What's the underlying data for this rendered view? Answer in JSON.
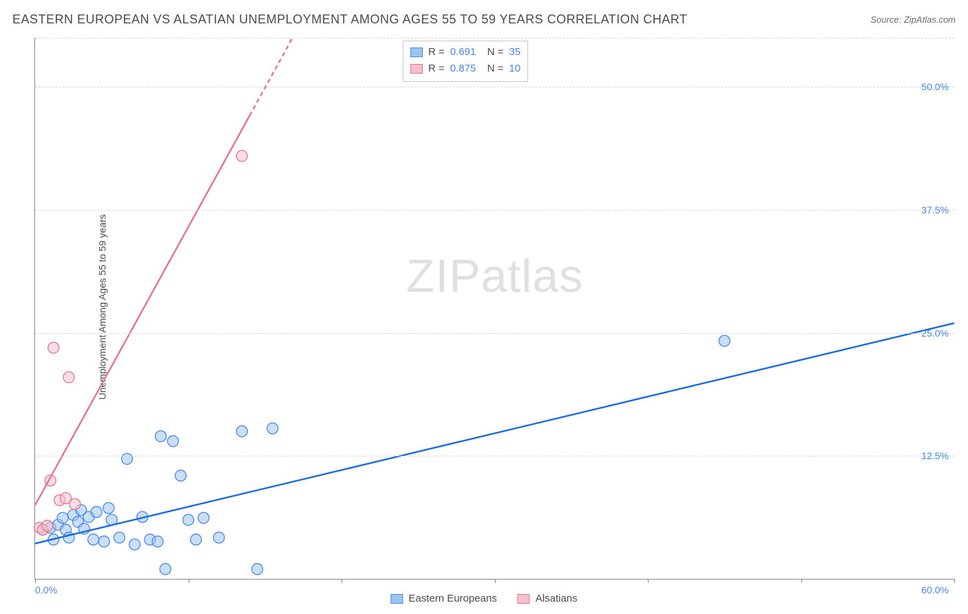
{
  "title": "EASTERN EUROPEAN VS ALSATIAN UNEMPLOYMENT AMONG AGES 55 TO 59 YEARS CORRELATION CHART",
  "source": "Source: ZipAtlas.com",
  "y_axis_label": "Unemployment Among Ages 55 to 59 years",
  "watermark": "ZIPatlas",
  "chart": {
    "type": "scatter-correlation",
    "background_color": "#ffffff",
    "grid_color": "#d8d8d8",
    "axis_color": "#888888",
    "text_color": "#4a4a4a",
    "value_color": "#4a86e8",
    "xlim": [
      0,
      60
    ],
    "ylim": [
      0,
      55
    ],
    "x_ticks": [
      0,
      10,
      20,
      30,
      40,
      50,
      60
    ],
    "x_tick_labels": {
      "0": "0.0%",
      "60": "60.0%"
    },
    "y_ticks": [
      12.5,
      25.0,
      37.5,
      50.0
    ],
    "y_tick_labels": [
      "12.5%",
      "25.0%",
      "37.5%",
      "50.0%"
    ],
    "marker_radius": 8,
    "marker_stroke_width": 1.3,
    "line_width": 2.4,
    "series": [
      {
        "name": "Eastern Europeans",
        "fill": "#9dc3f1",
        "stroke": "#4a86e8",
        "line_color": "#1a6ae0",
        "line_dashed_after_x": null,
        "r": "0.691",
        "n": "35",
        "reg_line": {
          "x1": 0,
          "y1": 3.6,
          "x2": 60,
          "y2": 26.0
        },
        "points": [
          {
            "x": 0.5,
            "y": 5.0
          },
          {
            "x": 1.0,
            "y": 5.2
          },
          {
            "x": 1.2,
            "y": 4.0
          },
          {
            "x": 1.5,
            "y": 5.5
          },
          {
            "x": 1.8,
            "y": 6.2
          },
          {
            "x": 2.0,
            "y": 5.0
          },
          {
            "x": 2.2,
            "y": 4.2
          },
          {
            "x": 2.5,
            "y": 6.5
          },
          {
            "x": 2.8,
            "y": 5.8
          },
          {
            "x": 3.0,
            "y": 7.0
          },
          {
            "x": 3.2,
            "y": 5.1
          },
          {
            "x": 3.5,
            "y": 6.3
          },
          {
            "x": 3.8,
            "y": 4.0
          },
          {
            "x": 4.0,
            "y": 6.8
          },
          {
            "x": 4.5,
            "y": 3.8
          },
          {
            "x": 5.0,
            "y": 6.0
          },
          {
            "x": 5.5,
            "y": 4.2
          },
          {
            "x": 6.0,
            "y": 12.2
          },
          {
            "x": 6.5,
            "y": 3.5
          },
          {
            "x": 7.0,
            "y": 6.3
          },
          {
            "x": 7.5,
            "y": 4.0
          },
          {
            "x": 8.0,
            "y": 3.8
          },
          {
            "x": 8.2,
            "y": 14.5
          },
          {
            "x": 8.5,
            "y": 1.0
          },
          {
            "x": 9.0,
            "y": 14.0
          },
          {
            "x": 9.5,
            "y": 10.5
          },
          {
            "x": 10.0,
            "y": 6.0
          },
          {
            "x": 10.5,
            "y": 4.0
          },
          {
            "x": 11.0,
            "y": 6.2
          },
          {
            "x": 12.0,
            "y": 4.2
          },
          {
            "x": 13.5,
            "y": 15.0
          },
          {
            "x": 14.5,
            "y": 1.0
          },
          {
            "x": 15.5,
            "y": 15.3
          },
          {
            "x": 45.0,
            "y": 24.2
          },
          {
            "x": 4.8,
            "y": 7.2
          }
        ]
      },
      {
        "name": "Alsatians",
        "fill": "#f4c2cd",
        "stroke": "#e6728f",
        "line_color": "#e6728f",
        "line_dashed_after_x": 14,
        "r": "0.875",
        "n": "10",
        "reg_line": {
          "x1": 0,
          "y1": 7.5,
          "x2": 16.8,
          "y2": 55.0
        },
        "points": [
          {
            "x": 0.3,
            "y": 5.2
          },
          {
            "x": 0.5,
            "y": 5.0
          },
          {
            "x": 0.8,
            "y": 5.4
          },
          {
            "x": 1.0,
            "y": 10.0
          },
          {
            "x": 1.6,
            "y": 8.0
          },
          {
            "x": 2.0,
            "y": 8.2
          },
          {
            "x": 1.2,
            "y": 23.5
          },
          {
            "x": 2.2,
            "y": 20.5
          },
          {
            "x": 2.6,
            "y": 7.6
          },
          {
            "x": 13.5,
            "y": 43.0
          }
        ]
      }
    ],
    "bottom_legend": [
      "Eastern Europeans",
      "Alsatians"
    ]
  }
}
